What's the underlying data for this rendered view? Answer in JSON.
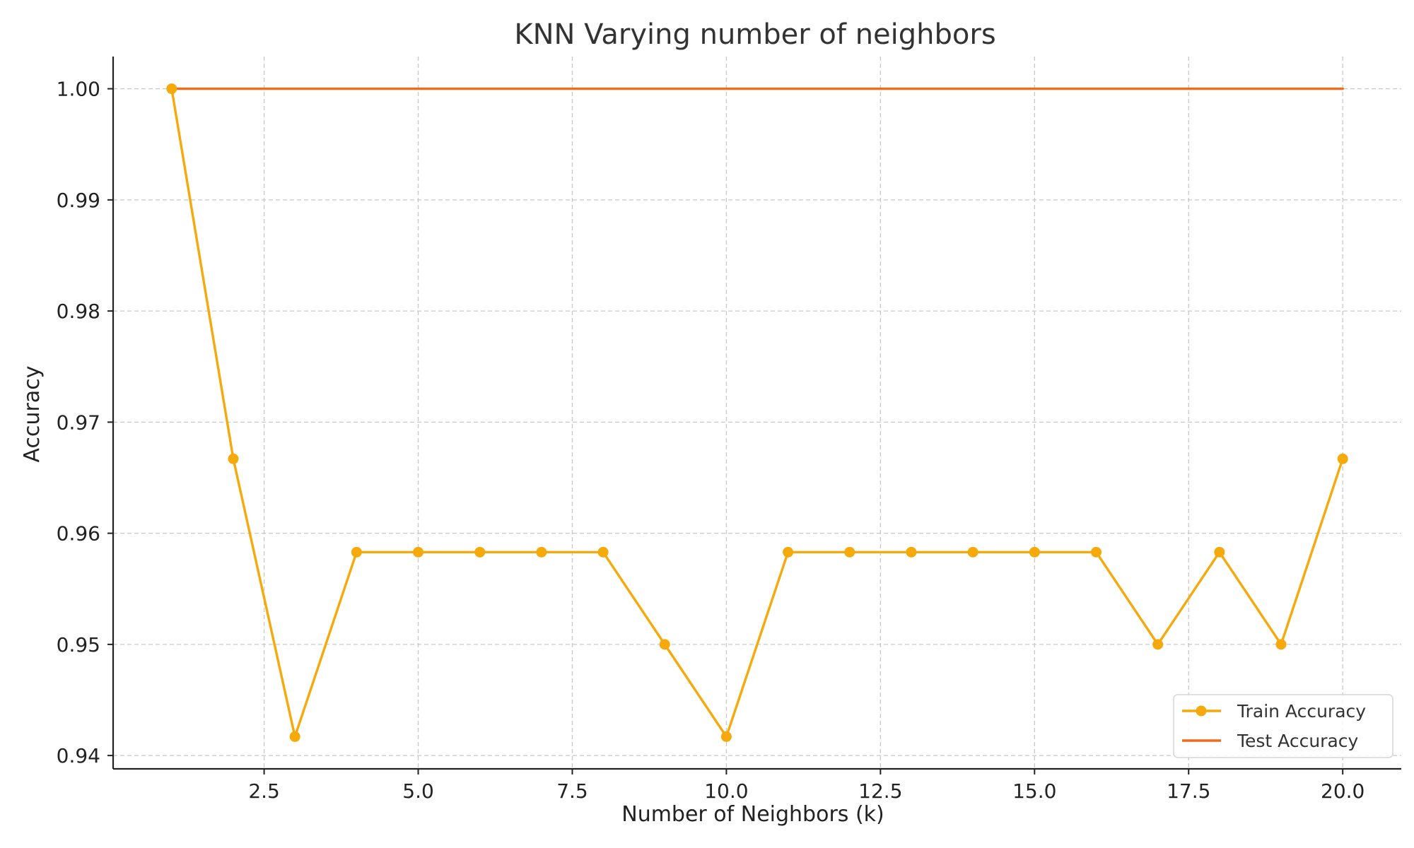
{
  "chart_data": {
    "type": "line",
    "title": "KNN Varying number of neighbors",
    "xlabel": "Number of Neighbors (k)",
    "ylabel": "Accuracy",
    "xlim": [
      0.05,
      20.95
    ],
    "ylim": [
      0.9388,
      1.0029
    ],
    "xticks": [
      2.5,
      5.0,
      7.5,
      10.0,
      12.5,
      15.0,
      17.5,
      20.0
    ],
    "xtick_labels": [
      "2.5",
      "5.0",
      "7.5",
      "10.0",
      "12.5",
      "15.0",
      "17.5",
      "20.0"
    ],
    "yticks": [
      0.94,
      0.95,
      0.96,
      0.97,
      0.98,
      0.99,
      1.0
    ],
    "ytick_labels": [
      "0.94",
      "0.95",
      "0.96",
      "0.97",
      "0.98",
      "0.99",
      "1.00"
    ],
    "grid": true,
    "legend_position": "lower-right",
    "x": [
      1,
      2,
      3,
      4,
      5,
      6,
      7,
      8,
      9,
      10,
      11,
      12,
      13,
      14,
      15,
      16,
      17,
      18,
      19,
      20
    ],
    "series": [
      {
        "name": "Train Accuracy",
        "color": "#f5a90a",
        "marker": "circle",
        "values": [
          1.0,
          0.9667,
          0.9417,
          0.9583,
          0.9583,
          0.9583,
          0.9583,
          0.9583,
          0.95,
          0.9417,
          0.9583,
          0.9583,
          0.9583,
          0.9583,
          0.9583,
          0.9583,
          0.95,
          0.9583,
          0.95,
          0.9667
        ]
      },
      {
        "name": "Test Accuracy",
        "color": "#f26b1d",
        "marker": "none",
        "values": [
          1.0,
          1.0,
          1.0,
          1.0,
          1.0,
          1.0,
          1.0,
          1.0,
          1.0,
          1.0,
          1.0,
          1.0,
          1.0,
          1.0,
          1.0,
          1.0,
          1.0,
          1.0,
          1.0,
          1.0
        ]
      }
    ]
  }
}
